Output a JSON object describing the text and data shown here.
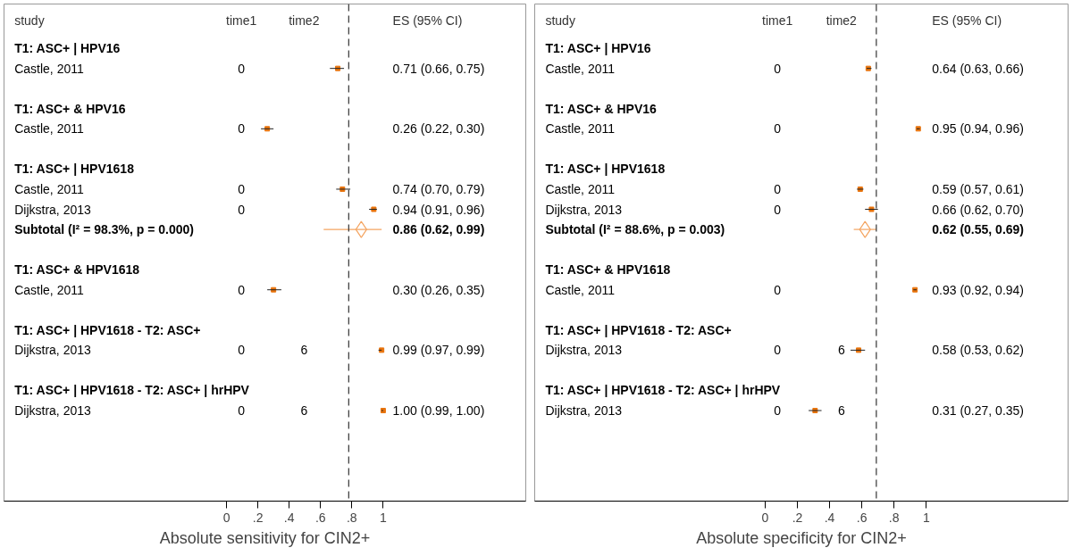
{
  "chart_data": [
    {
      "type": "scatter",
      "orientation": "horizontal",
      "xlabel": "Absolute sensitivity for CIN2+",
      "xlim": [
        -1.42,
        1.91
      ],
      "xticks": [
        {
          "value": 0,
          "label": "0"
        },
        {
          "value": 0.2,
          "label": ".2"
        },
        {
          "value": 0.4,
          "label": ".4"
        },
        {
          "value": 0.6,
          "label": ".6"
        },
        {
          "value": 0.8,
          "label": ".8"
        },
        {
          "value": 1,
          "label": "1"
        }
      ],
      "categories": [
        "T1: ASC+ | HPV16",
        "Castle, 2011",
        null,
        "T1: ASC+ & HPV16",
        "Castle, 2011",
        null,
        "T1: ASC+ | HPV1618",
        "Castle, 2011",
        "Dijkstra, 2013",
        "Subtotal  (I² = 98.3%, p = 0.000)",
        null,
        "T1: ASC+ & HPV1618",
        "Castle, 2011",
        null,
        "T1: ASC+ | HPV1618  -  T2: ASC+",
        "Dijkstra, 2013",
        null,
        "T1: ASC+ | HPV1618  -  T2: ASC+ | hrHPV",
        "Dijkstra, 2013",
        null,
        null,
        null,
        null
      ],
      "series": [
        {
          "color": "#e8730c",
          "marker": "square",
          "values": [
            null,
            0.71,
            null,
            null,
            0.26,
            null,
            null,
            0.74,
            0.94,
            null,
            null,
            null,
            0.3,
            null,
            null,
            0.99,
            null,
            null,
            1.0,
            null,
            null,
            null,
            null
          ],
          "errors": [
            null,
            [
              0.66,
              0.75
            ],
            null,
            null,
            [
              0.22,
              0.3
            ],
            null,
            null,
            [
              0.7,
              0.79
            ],
            [
              0.91,
              0.96
            ],
            null,
            null,
            null,
            [
              0.26,
              0.35
            ],
            null,
            null,
            [
              0.97,
              0.99
            ],
            null,
            null,
            [
              0.99,
              1.0
            ],
            null,
            null,
            null,
            null
          ]
        },
        {
          "color": "#f4a460",
          "marker": "diamond",
          "values": [
            null,
            null,
            null,
            null,
            null,
            null,
            null,
            null,
            null,
            0.86,
            null,
            null,
            null,
            null,
            null,
            null,
            null,
            null,
            null,
            null,
            null,
            null,
            null
          ],
          "errors": [
            null,
            null,
            null,
            null,
            null,
            null,
            null,
            null,
            null,
            [
              0.62,
              0.99
            ],
            null,
            null,
            null,
            null,
            null,
            null,
            null,
            null,
            null,
            null,
            null,
            null,
            null
          ]
        }
      ],
      "ref_lines": [
        {
          "axis": "x",
          "value": 0.78,
          "line_style": "dashed"
        }
      ],
      "annotations": [
        "study",
        "time1",
        "time2",
        "ES (95% CI)",
        "0.71 (0.66, 0.75)",
        "0.26 (0.22, 0.30)",
        "0.74 (0.70, 0.79)",
        "0.94 (0.91, 0.96)",
        "0.86 (0.62, 0.99)",
        "0.30 (0.26, 0.35)",
        "0.99 (0.97, 0.99)",
        "1.00 (0.99, 1.00)",
        "0",
        "0",
        "0",
        "0",
        "0",
        "0",
        "0",
        "6",
        "6"
      ],
      "grid": false,
      "tick_labels": "x"
    },
    {
      "type": "scatter",
      "orientation": "horizontal",
      "xlabel": "Absolute specificity for CIN2+",
      "xlim": [
        -1.43,
        1.88
      ],
      "xticks": [
        {
          "value": 0,
          "label": "0"
        },
        {
          "value": 0.2,
          "label": ".2"
        },
        {
          "value": 0.4,
          "label": ".4"
        },
        {
          "value": 0.6,
          "label": ".6"
        },
        {
          "value": 0.8,
          "label": ".8"
        },
        {
          "value": 1,
          "label": "1"
        }
      ],
      "categories": [
        "T1: ASC+ | HPV16",
        "Castle, 2011",
        null,
        "T1: ASC+ & HPV16",
        "Castle, 2011",
        null,
        "T1: ASC+ | HPV1618",
        "Castle, 2011",
        "Dijkstra, 2013",
        "Subtotal  (I² = 88.6%, p = 0.003)",
        null,
        "T1: ASC+ & HPV1618",
        "Castle, 2011",
        null,
        "T1: ASC+ | HPV1618  -  T2: ASC+",
        "Dijkstra, 2013",
        null,
        "T1: ASC+ | HPV1618  -  T2: ASC+ | hrHPV",
        "Dijkstra, 2013",
        null,
        null,
        null,
        null
      ],
      "series": [
        {
          "color": "#e8730c",
          "marker": "square",
          "values": [
            null,
            0.64,
            null,
            null,
            0.95,
            null,
            null,
            0.59,
            0.66,
            null,
            null,
            null,
            0.93,
            null,
            null,
            0.58,
            null,
            null,
            0.31,
            null,
            null,
            null,
            null
          ],
          "errors": [
            null,
            [
              0.63,
              0.66
            ],
            null,
            null,
            [
              0.94,
              0.96
            ],
            null,
            null,
            [
              0.57,
              0.61
            ],
            [
              0.62,
              0.7
            ],
            null,
            null,
            null,
            [
              0.92,
              0.94
            ],
            null,
            null,
            [
              0.53,
              0.62
            ],
            null,
            null,
            [
              0.27,
              0.35
            ],
            null,
            null,
            null,
            null
          ]
        },
        {
          "color": "#f4a460",
          "marker": "diamond",
          "values": [
            null,
            null,
            null,
            null,
            null,
            null,
            null,
            null,
            null,
            0.62,
            null,
            null,
            null,
            null,
            null,
            null,
            null,
            null,
            null,
            null,
            null,
            null,
            null
          ],
          "errors": [
            null,
            null,
            null,
            null,
            null,
            null,
            null,
            null,
            null,
            [
              0.55,
              0.69
            ],
            null,
            null,
            null,
            null,
            null,
            null,
            null,
            null,
            null,
            null,
            null,
            null,
            null
          ]
        }
      ],
      "ref_lines": [
        {
          "axis": "x",
          "value": 0.69,
          "line_style": "dashed"
        }
      ],
      "annotations": [
        "study",
        "time1",
        "time2",
        "ES (95% CI)",
        "0.64 (0.63, 0.66)",
        "0.95 (0.94, 0.96)",
        "0.59 (0.57, 0.61)",
        "0.66 (0.62, 0.70)",
        "0.62 (0.55, 0.69)",
        "0.93 (0.92, 0.94)",
        "0.58 (0.53, 0.62)",
        "0.31 (0.27, 0.35)",
        "0",
        "0",
        "0",
        "0",
        "0",
        "0",
        "0",
        "6",
        "6"
      ],
      "grid": false,
      "tick_labels": "x"
    }
  ]
}
